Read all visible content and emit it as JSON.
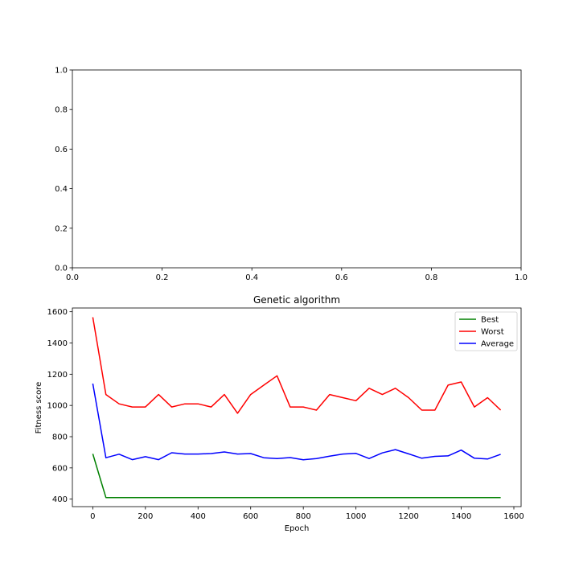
{
  "chart_data": [
    {
      "type": "line",
      "title": "",
      "xlabel": "",
      "ylabel": "",
      "xlim": [
        0.0,
        1.0
      ],
      "ylim": [
        0.0,
        1.0
      ],
      "xticks": [
        "0.0",
        "0.2",
        "0.4",
        "0.6",
        "0.8",
        "1.0"
      ],
      "yticks": [
        "0.0",
        "0.2",
        "0.4",
        "0.6",
        "0.8",
        "1.0"
      ],
      "series": []
    },
    {
      "type": "line",
      "title": "Genetic algorithm",
      "xlabel": "Epoch",
      "ylabel": "Fitness score",
      "xlim": [
        -77.5,
        1627.5
      ],
      "ylim": [
        352,
        1624
      ],
      "xticks": [
        "0",
        "200",
        "400",
        "600",
        "800",
        "1000",
        "1200",
        "1400",
        "1600"
      ],
      "yticks": [
        "400",
        "600",
        "800",
        "1000",
        "1200",
        "1400",
        "1600"
      ],
      "legend_position": "top-right",
      "grid": false,
      "x": [
        0,
        50,
        100,
        150,
        200,
        250,
        300,
        350,
        400,
        450,
        500,
        550,
        600,
        650,
        700,
        750,
        800,
        850,
        900,
        950,
        1000,
        1050,
        1100,
        1150,
        1200,
        1250,
        1300,
        1350,
        1400,
        1450,
        1500,
        1550
      ],
      "series": [
        {
          "name": "Best",
          "color": "#008000",
          "values": [
            690,
            410,
            410,
            410,
            410,
            410,
            410,
            410,
            410,
            410,
            410,
            410,
            410,
            410,
            410,
            410,
            410,
            410,
            410,
            410,
            410,
            410,
            410,
            410,
            410,
            410,
            410,
            410,
            410,
            410,
            410,
            410
          ]
        },
        {
          "name": "Worst",
          "color": "#ff0000",
          "values": [
            1565,
            1070,
            1010,
            990,
            990,
            1070,
            990,
            1010,
            1010,
            990,
            1070,
            950,
            1070,
            1130,
            1190,
            990,
            990,
            970,
            1070,
            1050,
            1030,
            1110,
            1070,
            1110,
            1050,
            970,
            970,
            1130,
            1150,
            990,
            1050,
            970
          ]
        },
        {
          "name": "Average",
          "color": "#0000ff",
          "values": [
            1140,
            665,
            688,
            653,
            672,
            653,
            697,
            689,
            689,
            692,
            702,
            689,
            692,
            665,
            660,
            666,
            652,
            660,
            675,
            689,
            693,
            660,
            696,
            717,
            690,
            662,
            674,
            677,
            714,
            662,
            657,
            687
          ]
        }
      ]
    }
  ]
}
